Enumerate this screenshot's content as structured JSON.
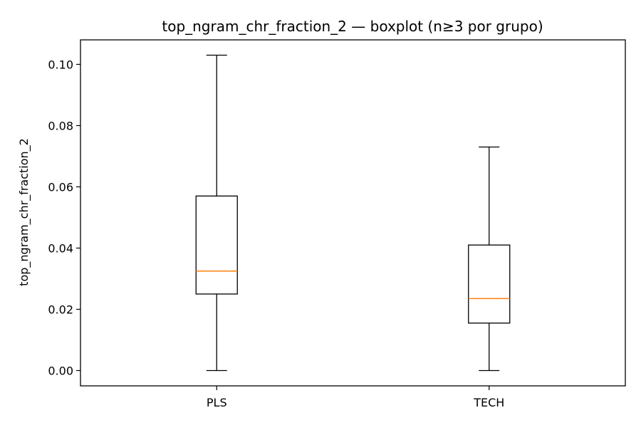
{
  "chart_data": {
    "type": "boxplot",
    "title": "top_ngram_chr_fraction_2 — boxplot (n≥3 por grupo)",
    "xlabel": "",
    "ylabel": "top_ngram_chr_fraction_2",
    "ylim": [
      -0.005,
      0.108
    ],
    "yticks": [
      0.0,
      0.02,
      0.04,
      0.06,
      0.08,
      0.1
    ],
    "ytick_labels": [
      "0.00",
      "0.02",
      "0.04",
      "0.06",
      "0.08",
      "0.10"
    ],
    "categories": [
      "PLS",
      "TECH"
    ],
    "boxes": [
      {
        "category": "PLS",
        "whisker_low": 0.0,
        "q1": 0.025,
        "median": 0.0325,
        "q3": 0.057,
        "whisker_high": 0.103
      },
      {
        "category": "TECH",
        "whisker_low": 0.0,
        "q1": 0.0155,
        "median": 0.0235,
        "q3": 0.041,
        "whisker_high": 0.073
      }
    ],
    "grid": false,
    "colors": {
      "box": "#000000",
      "median": "#ff7f0e",
      "axes": "#000000"
    }
  }
}
